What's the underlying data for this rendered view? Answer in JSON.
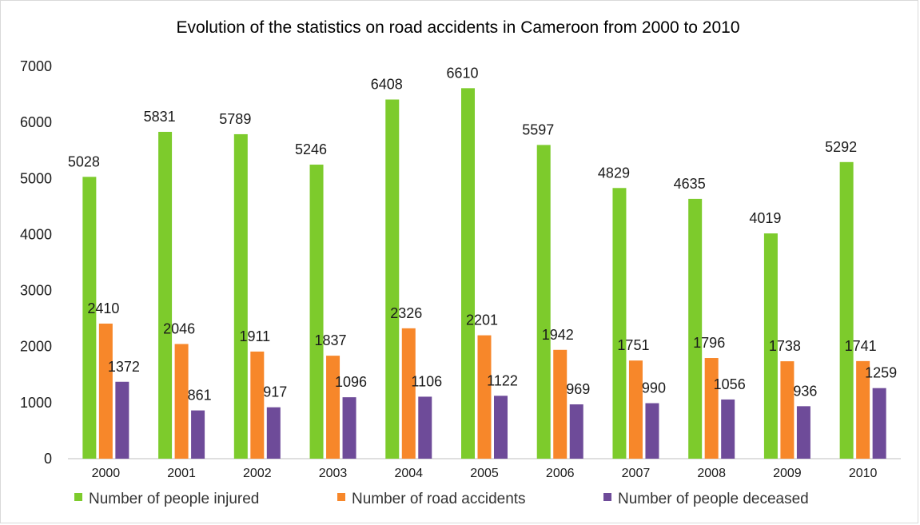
{
  "chart_data": {
    "type": "bar",
    "title": "Evolution of the statistics on road accidents in Cameroon from 2000 to 2010",
    "xlabel": "",
    "ylabel": "",
    "ylim": [
      0,
      7000
    ],
    "yticks": [
      0,
      1000,
      2000,
      3000,
      4000,
      5000,
      6000,
      7000
    ],
    "grid": false,
    "legend_position": "bottom",
    "categories": [
      "2000",
      "2001",
      "2002",
      "2003",
      "2004",
      "2005",
      "2006",
      "2007",
      "2008",
      "2009",
      "2010"
    ],
    "series": [
      {
        "name": "Number of people injured",
        "color": "#7dcb2c",
        "values": [
          5028,
          5831,
          5789,
          5246,
          6408,
          6610,
          5597,
          4829,
          4635,
          4019,
          5292
        ]
      },
      {
        "name": "Number of road accidents",
        "color": "#f7872a",
        "values": [
          2410,
          2046,
          1911,
          1837,
          2326,
          2201,
          1942,
          1751,
          1796,
          1738,
          1741
        ]
      },
      {
        "name": "Number of people deceased",
        "color": "#6e4b99",
        "values": [
          1372,
          861,
          917,
          1096,
          1106,
          1122,
          969,
          990,
          1056,
          936,
          1259
        ]
      }
    ]
  }
}
